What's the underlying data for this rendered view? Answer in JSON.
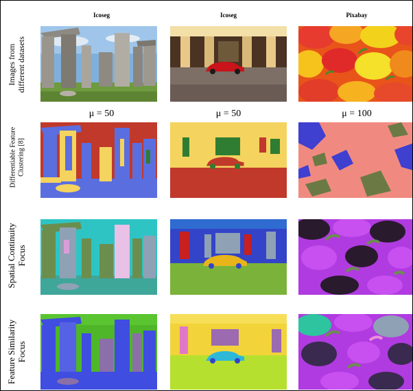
{
  "columns": [
    {
      "source": "Icoseg",
      "mu": "μ = 50"
    },
    {
      "source": "Icoseg",
      "mu": "μ = 50"
    },
    {
      "source": "Pixabay",
      "mu": "μ = 100"
    }
  ],
  "rows": [
    {
      "label_lines": [
        "Images from",
        "different datasets"
      ]
    },
    {
      "label_lines": [
        "Differentiable Feature",
        "Clustering [8]"
      ]
    },
    {
      "label_lines": [
        "Spatial Continuity",
        "Focus"
      ]
    },
    {
      "label_lines": [
        "Feature Similarity",
        "Focus"
      ]
    }
  ],
  "colors": {
    "diff_red": "#c0392b",
    "diff_blue": "#5b6ee0",
    "diff_yellow": "#f4d35e",
    "diff_green": "#2e7d32",
    "spatial_teal": "#2ec4c4",
    "spatial_olive": "#6b8e4e",
    "spatial_purple": "#b03be0",
    "feature_blue": "#3f4de0",
    "feature_yellow": "#f2d33a",
    "feature_lime": "#b6e030"
  }
}
